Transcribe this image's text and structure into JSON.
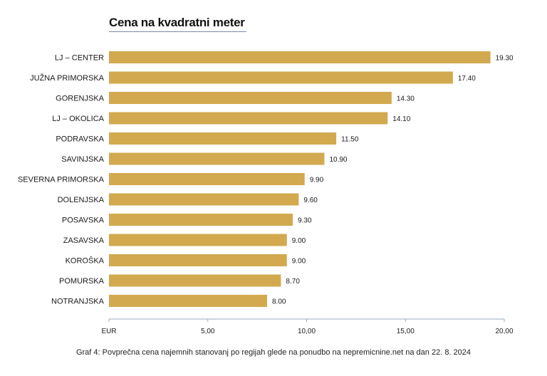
{
  "chart_data": {
    "type": "bar",
    "orientation": "horizontal",
    "title": "Cena na kvadratni meter",
    "categories": [
      "LJ – CENTER",
      "JUŽNA PRIMORSKA",
      "GORENJSKA",
      "LJ – OKOLICA",
      "PODRAVSKA",
      "SAVINJSKA",
      "SEVERNA PRIMORSKA",
      "DOLENJSKA",
      "POSAVSKA",
      "ZASAVSKA",
      "KOROŠKA",
      "POMURSKA",
      "NOTRANJSKA"
    ],
    "values": [
      19.3,
      17.4,
      14.3,
      14.1,
      11.5,
      10.9,
      9.9,
      9.6,
      9.3,
      9.0,
      9.0,
      8.7,
      8.0
    ],
    "value_labels": [
      "19.30",
      "17.40",
      "14.30",
      "14.10",
      "11.50",
      "10.90",
      "9.90",
      "9.60",
      "9.30",
      "9.00",
      "9.00",
      "8.70",
      "8.00"
    ],
    "xlim": [
      0,
      20
    ],
    "xticks": [
      0,
      5,
      10,
      15,
      20
    ],
    "xtick_labels": [
      "EUR",
      "5,00",
      "10,00",
      "15,00",
      "20,00"
    ],
    "bar_color": "#d2a94e",
    "axis_color": "#9aa9bd",
    "grid": false,
    "legend": "none"
  },
  "caption": "Graf 4: Povprečna cena najemnih stanovanj po regijah glede na ponudbo na nepremicnine.net na dan 22. 8. 2024"
}
